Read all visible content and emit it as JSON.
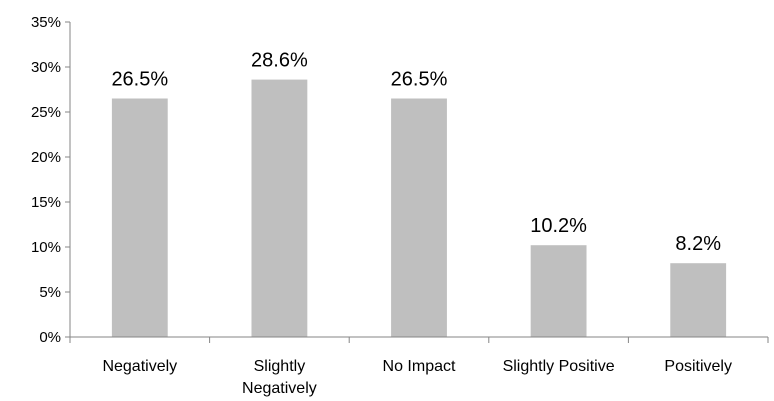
{
  "chart_data": {
    "type": "bar",
    "title": "",
    "xlabel": "",
    "ylabel": "",
    "categories": [
      "Negatively",
      "Slightly Negatively",
      "No Impact",
      "Slightly Positive",
      "Positively"
    ],
    "category_lines": [
      [
        "Negatively"
      ],
      [
        "Slightly",
        "Negatively"
      ],
      [
        "No Impact"
      ],
      [
        "Slightly Positive"
      ],
      [
        "Positively"
      ]
    ],
    "values": [
      26.5,
      28.6,
      26.5,
      10.2,
      8.2
    ],
    "data_labels": [
      "26.5%",
      "28.6%",
      "26.5%",
      "10.2%",
      "8.2%"
    ],
    "ylim": [
      0,
      35
    ],
    "y_ticks": [
      0,
      5,
      10,
      15,
      20,
      25,
      30,
      35
    ],
    "y_tick_labels": [
      "0%",
      "5%",
      "10%",
      "15%",
      "20%",
      "25%",
      "30%",
      "35%"
    ],
    "grid": false,
    "legend": "none",
    "bar_color": "#bfbfbf",
    "axis_color": "#868686"
  }
}
